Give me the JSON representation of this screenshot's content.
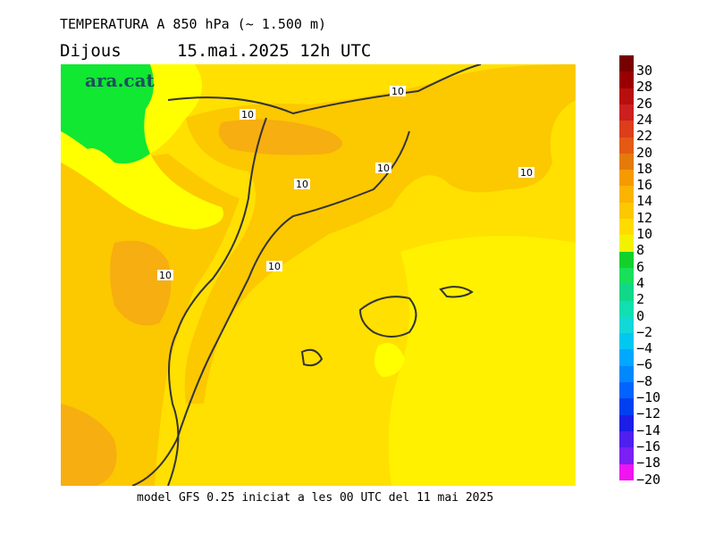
{
  "header": {
    "title": "TEMPERATURA A 850 hPa (~ 1.500 m)",
    "day": "Dijous",
    "datetime": "15.mai.2025 12h UTC"
  },
  "footer": "model GFS 0.25 iniciat a les 00 UTC del 11 mai 2025",
  "logo": "ara.cat",
  "contour_labels": [
    "10",
    "10",
    "10",
    "10",
    "10",
    "10",
    "10"
  ],
  "legend": {
    "labels": [
      "30",
      "28",
      "26",
      "24",
      "22",
      "20",
      "18",
      "16",
      "14",
      "12",
      "10",
      "8",
      "6",
      "4",
      "2",
      "0",
      "−2",
      "−4",
      "−6",
      "−8",
      "−10",
      "−12",
      "−14",
      "−16",
      "−18",
      "−20"
    ],
    "colors": [
      "#780000",
      "#9b0000",
      "#b80e0e",
      "#cc1f1f",
      "#dc3d1a",
      "#e45a14",
      "#e47a0a",
      "#f59a00",
      "#fab400",
      "#fcc800",
      "#ffdc00",
      "#f2f200",
      "#12d12b",
      "#19e05a",
      "#10d888",
      "#10e0b0",
      "#14d8d8",
      "#00c8f0",
      "#00a8ff",
      "#0088ff",
      "#0064ff",
      "#0040f0",
      "#1c1ee6",
      "#4f1ff0",
      "#7a20f5",
      "#f014f0"
    ]
  },
  "map_colors": {
    "band_6_8": "#ffff00",
    "band_8_10": "#ffe000",
    "band_10_12": "#fcc800",
    "band_12_14": "#f7ae10",
    "band_4_6": "#10e832"
  }
}
